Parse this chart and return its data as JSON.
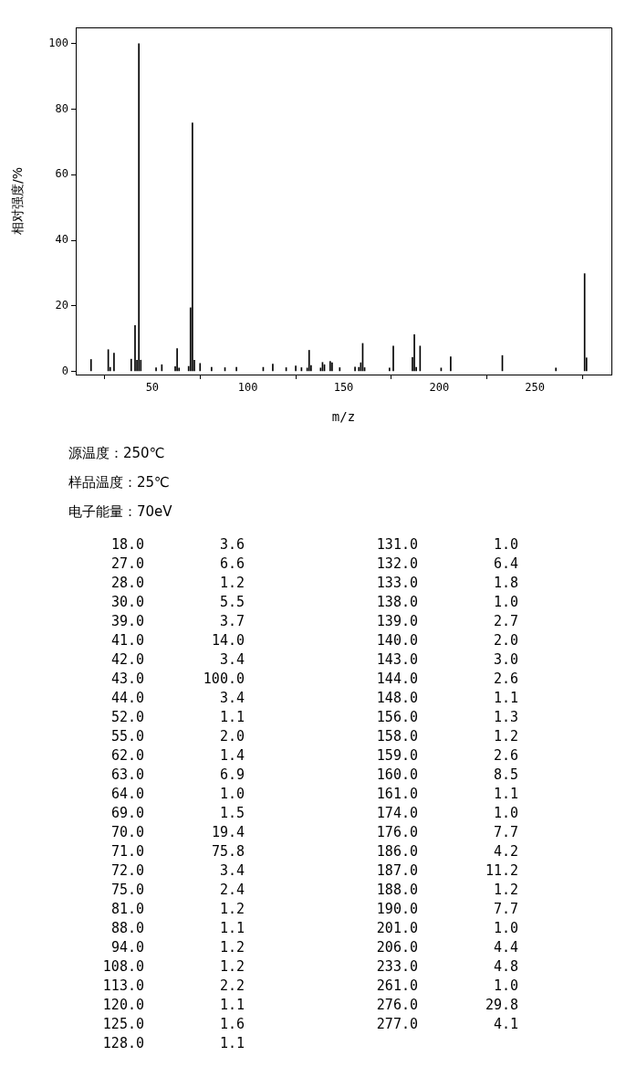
{
  "chart_data": {
    "type": "bar",
    "xlabel": "m/z",
    "ylabel": "相对强度/%",
    "x": [
      18,
      27,
      28,
      30,
      39,
      41,
      42,
      43,
      44,
      52,
      55,
      62,
      63,
      64,
      69,
      70,
      71,
      72,
      75,
      81,
      88,
      94,
      108,
      113,
      120,
      125,
      128,
      131,
      132,
      133,
      138,
      139,
      140,
      143,
      144,
      148,
      156,
      158,
      159,
      160,
      161,
      174,
      176,
      186,
      187,
      188,
      190,
      201,
      206,
      233,
      261,
      276,
      277
    ],
    "values": [
      3.6,
      6.6,
      1.2,
      5.5,
      3.7,
      14.0,
      3.4,
      100.0,
      3.4,
      1.1,
      2.0,
      1.4,
      6.9,
      1.0,
      1.5,
      19.4,
      75.8,
      3.4,
      2.4,
      1.2,
      1.1,
      1.2,
      1.2,
      2.2,
      1.1,
      1.6,
      1.1,
      1.0,
      6.4,
      1.8,
      1.0,
      2.7,
      2.0,
      3.0,
      2.6,
      1.1,
      1.3,
      1.2,
      2.6,
      8.5,
      1.1,
      1.0,
      7.7,
      4.2,
      11.2,
      1.2,
      7.7,
      1.0,
      4.4,
      4.8,
      1.0,
      29.8,
      4.1
    ],
    "color": "#000000",
    "xlim": [
      10,
      290
    ],
    "xticks": [
      50,
      100,
      150,
      200,
      250
    ],
    "ylim": [
      -1,
      105
    ],
    "yticks": [
      0,
      20,
      40,
      60,
      80,
      100
    ],
    "grid": false,
    "legend": false,
    "annotations": [
      "源温度：250℃",
      "样品温度：25℃",
      "电子能量：70eV",
      "18.0",
      "3.6",
      "27.0",
      "6.6",
      "28.0",
      "1.2",
      "30.0",
      "5.5",
      "39.0",
      "3.7",
      "41.0",
      "14.0",
      "42.0",
      "3.4",
      "43.0",
      "100.0",
      "44.0",
      "3.4",
      "52.0",
      "1.1",
      "55.0",
      "2.0",
      "62.0",
      "1.4",
      "63.0",
      "6.9",
      "64.0",
      "1.0",
      "69.0",
      "1.5",
      "70.0",
      "19.4",
      "71.0",
      "75.8",
      "72.0",
      "3.4",
      "75.0",
      "2.4",
      "81.0",
      "1.2",
      "88.0",
      "1.1",
      "94.0",
      "1.2",
      "108.0",
      "1.2",
      "113.0",
      "2.2",
      "120.0",
      "1.1",
      "125.0",
      "1.6",
      "128.0",
      "1.1",
      "131.0",
      "1.0",
      "132.0",
      "6.4",
      "133.0",
      "1.8",
      "138.0",
      "1.0",
      "139.0",
      "2.7",
      "140.0",
      "2.0",
      "143.0",
      "3.0",
      "144.0",
      "2.6",
      "148.0",
      "1.1",
      "156.0",
      "1.3",
      "158.0",
      "1.2",
      "159.0",
      "2.6",
      "160.0",
      "8.5",
      "161.0",
      "1.1",
      "174.0",
      "1.0",
      "176.0",
      "7.7",
      "186.0",
      "4.2",
      "187.0",
      "11.2",
      "188.0",
      "1.2",
      "190.0",
      "7.7",
      "201.0",
      "1.0",
      "206.0",
      "4.4",
      "233.0",
      "4.8",
      "261.0",
      "1.0",
      "276.0",
      "29.8",
      "277.0",
      "4.1"
    ]
  }
}
